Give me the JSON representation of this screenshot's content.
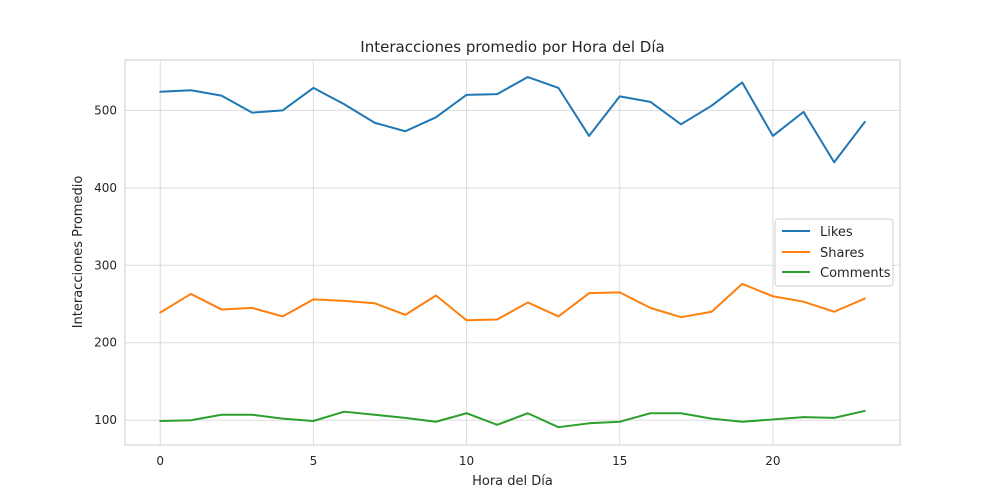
{
  "chart_data": {
    "type": "line",
    "title": "Interacciones promedio por Hora del Día",
    "xlabel": "Hora del Día",
    "ylabel": "Interacciones Promedio",
    "x": [
      0,
      1,
      2,
      3,
      4,
      5,
      6,
      7,
      8,
      9,
      10,
      11,
      12,
      13,
      14,
      15,
      16,
      17,
      18,
      19,
      20,
      21,
      22,
      23
    ],
    "xlim": [
      -1.15,
      24.15
    ],
    "ylim": [
      68,
      565
    ],
    "xticks": [
      0,
      5,
      10,
      15,
      20
    ],
    "yticks": [
      100,
      200,
      300,
      400,
      500
    ],
    "grid": true,
    "legend_position": "center-right",
    "series": [
      {
        "name": "Likes",
        "color": "#1f77b4",
        "values": [
          524,
          526,
          519,
          497,
          500,
          529,
          508,
          484,
          473,
          491,
          520,
          521,
          543,
          529,
          467,
          518,
          511,
          482,
          506,
          536,
          467,
          498,
          433,
          485
        ]
      },
      {
        "name": "Shares",
        "color": "#ff7f0e",
        "values": [
          239,
          263,
          243,
          245,
          234,
          256,
          254,
          251,
          236,
          261,
          229,
          230,
          252,
          234,
          264,
          265,
          245,
          233,
          240,
          276,
          260,
          253,
          240,
          257
        ]
      },
      {
        "name": "Comments",
        "color": "#2ca02c",
        "values": [
          99,
          100,
          107,
          107,
          102,
          99,
          111,
          107,
          103,
          98,
          109,
          94,
          109,
          91,
          96,
          98,
          109,
          109,
          102,
          98,
          101,
          104,
          103,
          112
        ]
      }
    ]
  }
}
